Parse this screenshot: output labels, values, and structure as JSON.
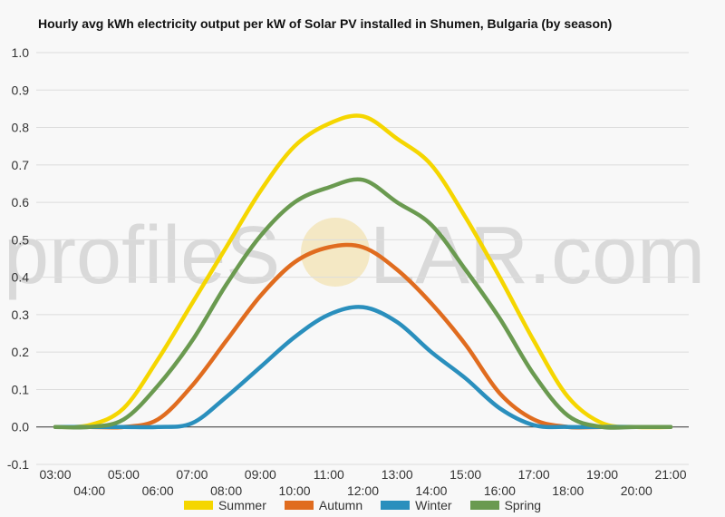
{
  "chart_data": {
    "type": "line",
    "title": "Hourly avg kWh electricity output per kW of Solar PV installed in Shumen, Bulgaria (by season)",
    "xlabel": "",
    "ylabel": "",
    "ylim": [
      -0.1,
      1.0
    ],
    "yticks": [
      "1.0",
      "0.9",
      "0.8",
      "0.7",
      "0.6",
      "0.5",
      "0.4",
      "0.3",
      "0.2",
      "0.1",
      "0.0",
      "-0.1"
    ],
    "categories": [
      "03:00",
      "04:00",
      "05:00",
      "06:00",
      "07:00",
      "08:00",
      "09:00",
      "10:00",
      "11:00",
      "12:00",
      "13:00",
      "14:00",
      "15:00",
      "16:00",
      "17:00",
      "18:00",
      "19:00",
      "20:00",
      "21:00"
    ],
    "series": [
      {
        "name": "Summer",
        "color": "#f5d600",
        "values": [
          0.0,
          0.005,
          0.05,
          0.18,
          0.33,
          0.48,
          0.63,
          0.75,
          0.81,
          0.83,
          0.77,
          0.7,
          0.56,
          0.4,
          0.23,
          0.08,
          0.01,
          0.0,
          0.0
        ]
      },
      {
        "name": "Autumn",
        "color": "#e06c1f",
        "values": [
          0.0,
          0.0,
          0.0,
          0.02,
          0.11,
          0.23,
          0.35,
          0.44,
          0.48,
          0.48,
          0.42,
          0.33,
          0.22,
          0.09,
          0.02,
          0.0,
          0.0,
          0.0,
          0.0
        ]
      },
      {
        "name": "Winter",
        "color": "#2a8fbd",
        "values": [
          0.0,
          0.0,
          0.0,
          0.0,
          0.01,
          0.08,
          0.16,
          0.24,
          0.3,
          0.32,
          0.28,
          0.2,
          0.13,
          0.05,
          0.005,
          0.0,
          0.0,
          0.0,
          0.0
        ]
      },
      {
        "name": "Spring",
        "color": "#6a9a50",
        "values": [
          0.0,
          0.0,
          0.02,
          0.11,
          0.23,
          0.38,
          0.51,
          0.6,
          0.64,
          0.66,
          0.6,
          0.54,
          0.42,
          0.29,
          0.14,
          0.03,
          0.0,
          0.0,
          0.0
        ]
      }
    ]
  },
  "watermark": {
    "text_left": "profileS",
    "text_right": "LAR.com"
  }
}
